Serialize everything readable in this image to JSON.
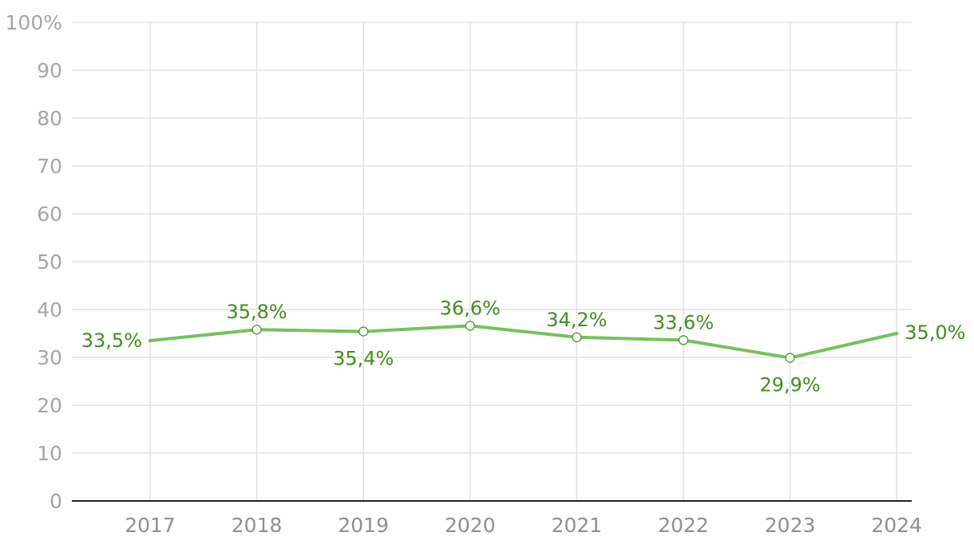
{
  "colors": {
    "line": "#77c05f",
    "label": "#3f8f1e",
    "grid": "#e1e1e1",
    "axis": "#222222"
  },
  "chart_data": {
    "type": "line",
    "categories": [
      "2017",
      "2018",
      "2019",
      "2020",
      "2021",
      "2022",
      "2023",
      "2024"
    ],
    "series": [
      {
        "values": [
          33.5,
          35.8,
          35.4,
          36.6,
          34.2,
          33.6,
          29.9,
          35.0
        ],
        "labels": [
          "33,5%",
          "35,8%",
          "35,4%",
          "36,6%",
          "34,2%",
          "33,6%",
          "29,9%",
          "35,0%"
        ]
      }
    ],
    "ylim": [
      0,
      100
    ],
    "y_ticks": [
      0,
      10,
      20,
      30,
      40,
      50,
      60,
      70,
      80,
      90,
      100
    ],
    "y_tick_labels": [
      "0",
      "10",
      "20",
      "30",
      "40",
      "50",
      "60",
      "70",
      "80",
      "90",
      "100%"
    ],
    "grid": true,
    "legend": false
  }
}
